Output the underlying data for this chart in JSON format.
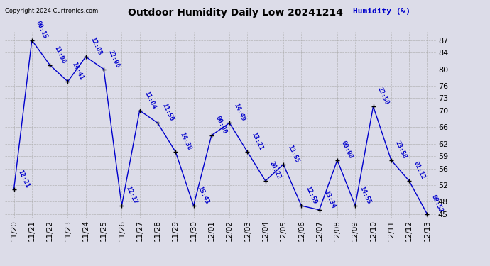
{
  "title": "Outdoor Humidity Daily Low 20241214",
  "ylabel": "Humidity (%)",
  "copyright": "Copyright 2024 Curtronics.com",
  "background_color": "#dcdce8",
  "line_color": "#0000cc",
  "text_color": "#0000cc",
  "grid_color": "#aaaaaa",
  "ylim": [
    44,
    89
  ],
  "yticks": [
    45,
    48,
    52,
    56,
    59,
    62,
    66,
    70,
    73,
    76,
    80,
    84,
    87
  ],
  "dates": [
    "11/20",
    "11/21",
    "11/22",
    "11/23",
    "11/24",
    "11/25",
    "11/26",
    "11/27",
    "11/28",
    "11/29",
    "11/30",
    "12/01",
    "12/02",
    "12/03",
    "12/04",
    "12/05",
    "12/06",
    "12/07",
    "12/08",
    "12/09",
    "12/10",
    "12/11",
    "12/12",
    "12/13"
  ],
  "values": [
    51,
    87,
    81,
    77,
    83,
    80,
    47,
    70,
    67,
    60,
    47,
    64,
    67,
    60,
    53,
    57,
    47,
    46,
    58,
    47,
    71,
    58,
    53,
    45
  ],
  "labels": [
    "12:21",
    "00:15",
    "11:06",
    "14:41",
    "12:08",
    "22:06",
    "12:17",
    "11:04",
    "11:50",
    "14:38",
    "15:43",
    "00:00",
    "14:49",
    "13:21",
    "20:22",
    "13:55",
    "12:59",
    "13:34",
    "00:00",
    "14:55",
    "22:50",
    "23:58",
    "01:12",
    "09:52"
  ]
}
